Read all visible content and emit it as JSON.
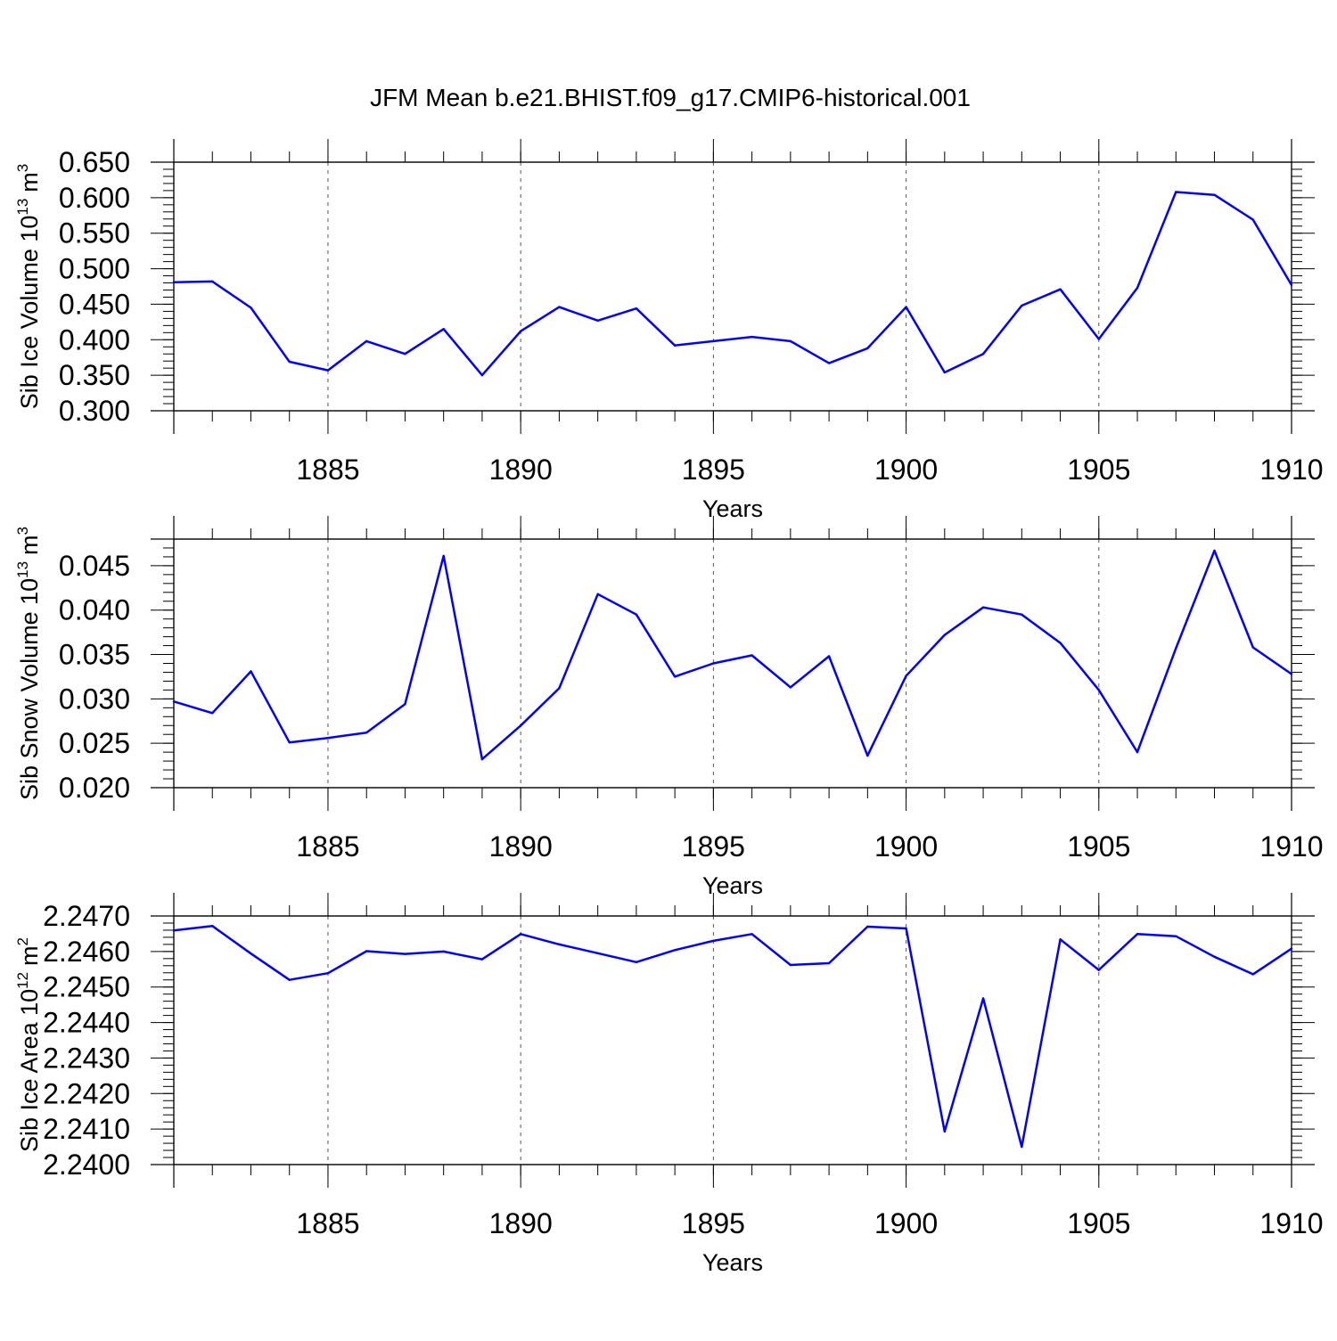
{
  "title": "JFM Mean b.e21.BHIST.f09_g17.CMIP6-historical.001",
  "colors": {
    "series": "#0000ff",
    "axis": "#000000",
    "grid": "#555555"
  },
  "chart_data": [
    {
      "type": "line",
      "ylabel": "Sib Ice Volume 10",
      "ylabel_sup": "13",
      "ylabel_unit": "m",
      "ylabel_unit_sup": "3",
      "xlabel": "Years",
      "xlim": [
        1881,
        1910
      ],
      "ylim": [
        0.3,
        0.65
      ],
      "yticks": [
        0.3,
        0.35,
        0.4,
        0.45,
        0.5,
        0.55,
        0.6,
        0.65
      ],
      "ytick_labels": [
        "0.300",
        "0.350",
        "0.400",
        "0.450",
        "0.500",
        "0.550",
        "0.600",
        "0.650"
      ],
      "xticks": [
        1885,
        1890,
        1895,
        1900,
        1905,
        1910
      ],
      "xtick_labels": [
        "1885",
        "1890",
        "1895",
        "1900",
        "1905",
        "1910"
      ],
      "x": [
        1881,
        1882,
        1883,
        1884,
        1885,
        1886,
        1887,
        1888,
        1889,
        1890,
        1891,
        1892,
        1893,
        1894,
        1895,
        1896,
        1897,
        1898,
        1899,
        1900,
        1901,
        1902,
        1903,
        1904,
        1905,
        1906,
        1907,
        1908,
        1909,
        1910
      ],
      "values": [
        0.481,
        0.482,
        0.445,
        0.369,
        0.357,
        0.398,
        0.38,
        0.415,
        0.35,
        0.412,
        0.446,
        0.427,
        0.444,
        0.392,
        0.398,
        0.404,
        0.398,
        0.367,
        0.388,
        0.446,
        0.354,
        0.38,
        0.448,
        0.471,
        0.401,
        0.473,
        0.608,
        0.604,
        0.569,
        0.477
      ]
    },
    {
      "type": "line",
      "ylabel": "Sib Snow Volume 10",
      "ylabel_sup": "13",
      "ylabel_unit": "m",
      "ylabel_unit_sup": "3",
      "xlabel": "Years",
      "xlim": [
        1881,
        1910
      ],
      "ylim": [
        0.02,
        0.048
      ],
      "yticks": [
        0.02,
        0.025,
        0.03,
        0.035,
        0.04,
        0.045
      ],
      "ytick_labels": [
        "0.020",
        "0.025",
        "0.030",
        "0.035",
        "0.040",
        "0.045"
      ],
      "xticks": [
        1885,
        1890,
        1895,
        1900,
        1905,
        1910
      ],
      "xtick_labels": [
        "1885",
        "1890",
        "1895",
        "1900",
        "1905",
        "1910"
      ],
      "x": [
        1881,
        1882,
        1883,
        1884,
        1885,
        1886,
        1887,
        1888,
        1889,
        1890,
        1891,
        1892,
        1893,
        1894,
        1895,
        1896,
        1897,
        1898,
        1899,
        1900,
        1901,
        1902,
        1903,
        1904,
        1905,
        1906,
        1907,
        1908,
        1909,
        1910
      ],
      "values": [
        0.0297,
        0.0284,
        0.0331,
        0.0251,
        0.0256,
        0.0262,
        0.0294,
        0.0461,
        0.0232,
        0.027,
        0.0312,
        0.0418,
        0.0395,
        0.0325,
        0.034,
        0.0349,
        0.0313,
        0.0348,
        0.0236,
        0.0326,
        0.0372,
        0.0403,
        0.0395,
        0.0363,
        0.031,
        0.024,
        0.0357,
        0.0467,
        0.0358,
        0.0328
      ]
    },
    {
      "type": "line",
      "ylabel": "Sib Ice Area 10",
      "ylabel_sup": "12",
      "ylabel_unit": "m",
      "ylabel_unit_sup": "2",
      "xlabel": "Years",
      "xlim": [
        1881,
        1910
      ],
      "ylim": [
        2.24,
        2.247
      ],
      "yticks": [
        2.24,
        2.241,
        2.242,
        2.243,
        2.244,
        2.245,
        2.246,
        2.247
      ],
      "ytick_labels": [
        "2.2400",
        "2.2410",
        "2.2420",
        "2.2430",
        "2.2440",
        "2.2450",
        "2.2460",
        "2.2470"
      ],
      "xticks": [
        1885,
        1890,
        1895,
        1900,
        1905,
        1910
      ],
      "xtick_labels": [
        "1885",
        "1890",
        "1895",
        "1900",
        "1905",
        "1910"
      ],
      "x": [
        1881,
        1882,
        1883,
        1884,
        1885,
        1886,
        1887,
        1888,
        1889,
        1890,
        1891,
        1892,
        1893,
        1894,
        1895,
        1896,
        1897,
        1898,
        1899,
        1900,
        1901,
        1902,
        1903,
        1904,
        1905,
        1906,
        1907,
        1908,
        1909,
        1910
      ],
      "values": [
        2.24659,
        2.24672,
        2.24594,
        2.2452,
        2.24539,
        2.24601,
        2.24593,
        2.246,
        2.24578,
        2.24649,
        2.2462,
        2.24595,
        2.2457,
        2.24604,
        2.2463,
        2.24649,
        2.24562,
        2.24567,
        2.2467,
        2.24665,
        2.24093,
        2.24468,
        2.2405,
        2.24634,
        2.24548,
        2.24649,
        2.24643,
        2.24585,
        2.24536,
        2.24608
      ]
    }
  ]
}
